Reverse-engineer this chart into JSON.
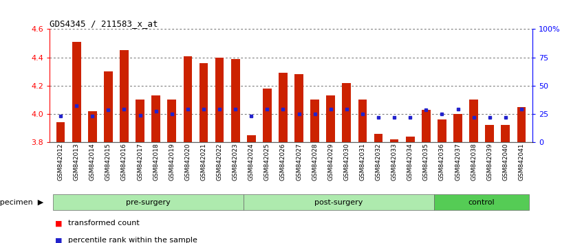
{
  "title": "GDS4345 / 211583_x_at",
  "samples": [
    "GSM842012",
    "GSM842013",
    "GSM842014",
    "GSM842015",
    "GSM842016",
    "GSM842017",
    "GSM842018",
    "GSM842019",
    "GSM842020",
    "GSM842021",
    "GSM842022",
    "GSM842023",
    "GSM842024",
    "GSM842025",
    "GSM842026",
    "GSM842027",
    "GSM842028",
    "GSM842029",
    "GSM842030",
    "GSM842031",
    "GSM842032",
    "GSM842033",
    "GSM842034",
    "GSM842035",
    "GSM842036",
    "GSM842037",
    "GSM842038",
    "GSM842039",
    "GSM842040",
    "GSM842041"
  ],
  "red_values": [
    3.94,
    4.51,
    4.02,
    4.3,
    4.45,
    4.1,
    4.13,
    4.1,
    4.41,
    4.36,
    4.4,
    4.39,
    3.85,
    4.18,
    4.29,
    4.28,
    4.1,
    4.13,
    4.22,
    4.1,
    3.86,
    3.82,
    3.84,
    4.03,
    3.96,
    4.0,
    4.1,
    3.92,
    3.92,
    4.05
  ],
  "blue_values": [
    3.985,
    4.06,
    3.985,
    4.03,
    4.035,
    3.99,
    4.02,
    4.0,
    4.035,
    4.035,
    4.035,
    4.035,
    3.985,
    4.035,
    4.035,
    4.0,
    4.0,
    4.035,
    4.035,
    4.0,
    3.975,
    3.975,
    3.975,
    4.03,
    4.0,
    4.035,
    3.975,
    3.975,
    3.975,
    4.035
  ],
  "groups": [
    {
      "label": "pre-surgery",
      "start": 0,
      "end": 12,
      "color": "#aeeaae"
    },
    {
      "label": "post-surgery",
      "start": 12,
      "end": 24,
      "color": "#aeeaae"
    },
    {
      "label": "control",
      "start": 24,
      "end": 30,
      "color": "#55cc55"
    }
  ],
  "ylim": [
    3.8,
    4.6
  ],
  "yticks": [
    3.8,
    4.0,
    4.2,
    4.4,
    4.6
  ],
  "right_ylabels": [
    "0",
    "25",
    "50",
    "75",
    "100%"
  ],
  "bar_color": "#CC2200",
  "dot_color": "#2222CC",
  "bar_width": 0.55,
  "background_color": "#ffffff",
  "grid_color": "#333333",
  "tick_gray": "#bbbbbb"
}
